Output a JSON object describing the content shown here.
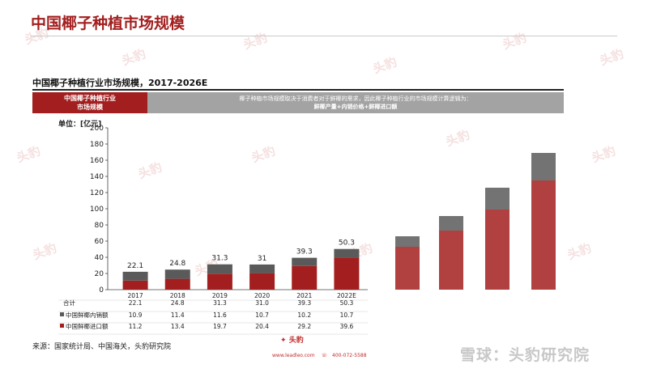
{
  "page": {
    "title": "中国椰子种植市场规模",
    "subtitle": "中国椰子种植行业市场规模，2017-2026E",
    "banner_left": [
      "中国椰子种植行业",
      "市场规模"
    ],
    "banner_right": [
      "椰子种植市场规模取决于消费者对于鲜椰的需求，因此椰子种植行业的市场规模计算逻辑为：",
      "鲜椰产量+内销价格+鲜椰进口额"
    ],
    "unit": "单位：[亿元]",
    "source": "来源：国家统计局、中国海关，头豹研究院",
    "footer_logo": "头豹",
    "footer_site": "www.leadleo.com",
    "footer_phone": "400-072-5588",
    "watermark_brand": "雪球：头豹研究院",
    "watermark_text": "头豹"
  },
  "colors": {
    "brand_red": "#a31f1f",
    "domestic": "#5a5a5a",
    "import": "#a31f1f",
    "banner_gray": "#a3a3a3"
  },
  "chart_data": {
    "type": "bar",
    "stacked": true,
    "title": "中国椰子种植行业市场规模，2017-2026E",
    "ylabel": "单位：[亿元]",
    "ylim": [
      0,
      200
    ],
    "yticks": [
      0,
      20,
      40,
      60,
      80,
      100,
      120,
      140,
      160,
      180,
      200
    ],
    "grid": false,
    "categories": [
      "2017",
      "2018",
      "2019",
      "2020",
      "2021",
      "2022E"
    ],
    "series": [
      {
        "name": "中国鲜椰进口额",
        "values": [
          11.2,
          13.4,
          19.7,
          20.4,
          29.2,
          39.6
        ]
      },
      {
        "name": "中国鲜椰内销额",
        "values": [
          10.9,
          11.4,
          11.6,
          10.7,
          10.2,
          10.7
        ]
      }
    ],
    "totals": [
      22.1,
      24.8,
      31.3,
      31.0,
      39.3,
      50.3
    ],
    "table": {
      "headers": [
        "合计",
        "中国鲜椰内销额",
        "中国鲜椰进口额"
      ],
      "rows": [
        [
          "22.1",
          "24.8",
          "31.3",
          "31.0",
          "39.3",
          "50.3"
        ],
        [
          "10.9",
          "11.4",
          "11.6",
          "10.7",
          "10.2",
          "10.7"
        ],
        [
          "11.2",
          "13.4",
          "19.7",
          "20.4",
          "29.2",
          "39.6"
        ]
      ]
    },
    "blurred_forecast": {
      "note": "blurred region (values unreadable)",
      "totals_est": [
        66,
        91,
        126,
        169
      ],
      "domestic_est": [
        13,
        18,
        27,
        34
      ]
    }
  }
}
